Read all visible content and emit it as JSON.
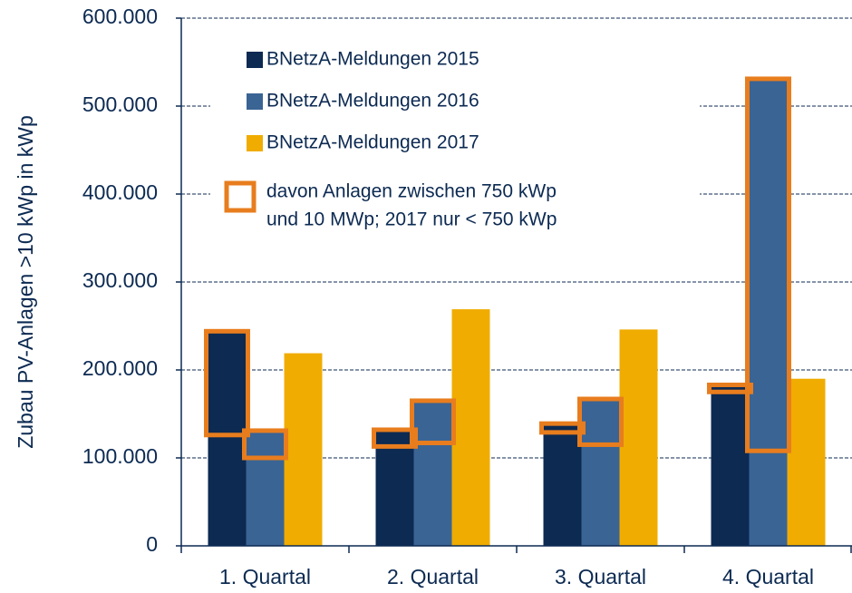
{
  "chart_data": {
    "type": "bar",
    "y_axis_label": "Zubau PV-Anlagen >10 kWp  in kWp",
    "categories": [
      "1. Quartal",
      "2. Quartal",
      "3. Quartal",
      "4. Quartal"
    ],
    "series": [
      {
        "name": "BNetzA-Meldungen 2015",
        "color": "#0c2a52",
        "values": [
          244000,
          132000,
          139000,
          183000
        ],
        "highlight_values": [
          118000,
          19000,
          10000,
          8000
        ]
      },
      {
        "name": "BNetzA-Meldungen 2016",
        "color": "#3a6494",
        "values": [
          131000,
          165000,
          167000,
          531000
        ],
        "highlight_values": [
          31000,
          48000,
          52000,
          423000
        ]
      },
      {
        "name": "BNetzA-Meldungen 2017",
        "color": "#f0ac00",
        "values": [
          219000,
          269000,
          246000,
          190000
        ]
      }
    ],
    "highlight": {
      "name": [
        "davon Anlagen zwischen 750 kWp",
        "und 10 MWp; 2017 nur < 750 kWp"
      ],
      "color": "#e87d1e"
    },
    "ylim": [
      0,
      600000
    ],
    "yticks": [
      0,
      {
        "value": 100000,
        "label": "100.000"
      },
      {
        "value": 200000,
        "label": "200.000"
      },
      {
        "value": 300000,
        "label": "300.000"
      },
      {
        "value": 400000,
        "label": "400.000"
      },
      {
        "value": 500000,
        "label": "500.000"
      },
      {
        "value": 600000,
        "label": "600.000"
      }
    ],
    "grid": true
  }
}
